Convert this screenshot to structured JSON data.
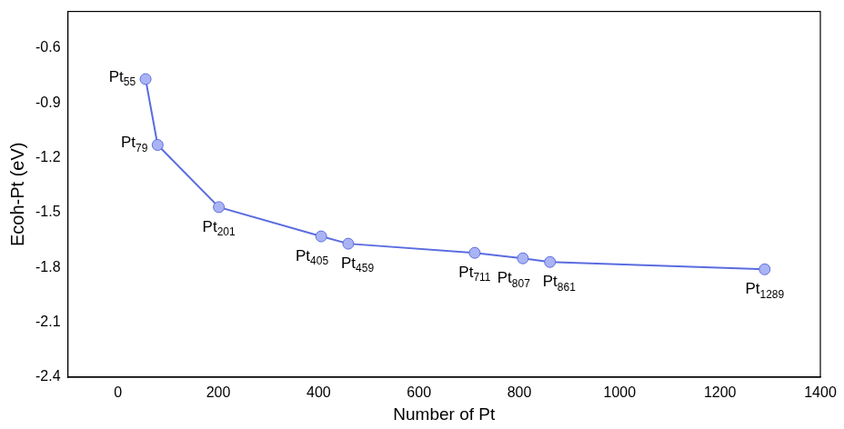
{
  "chart_data": {
    "type": "line",
    "x_label": "Number of Pt",
    "y_label": "Ecoh-Pt (eV)",
    "x": [
      55,
      79,
      201,
      405,
      459,
      711,
      807,
      861,
      1289
    ],
    "values": [
      -0.77,
      -1.13,
      -1.47,
      -1.63,
      -1.67,
      -1.72,
      -1.75,
      -1.77,
      -1.81
    ],
    "point_labels": [
      "Pt55",
      "Pt79",
      "Pt201",
      "Pt405",
      "Pt459",
      "Pt711",
      "Pt807",
      "Pt861",
      "Pt1289"
    ],
    "color": "#5a6ce0",
    "marker": "circle",
    "xlim": [
      -100,
      1400
    ],
    "xticks": [
      0,
      200,
      400,
      600,
      800,
      1000,
      1200,
      1400
    ],
    "ylim": [
      -2.4,
      -0.4
    ],
    "yticks": [
      -2.4,
      -2.1,
      -1.8,
      -1.5,
      -1.2,
      -0.9,
      -0.6
    ],
    "grid": false
  }
}
